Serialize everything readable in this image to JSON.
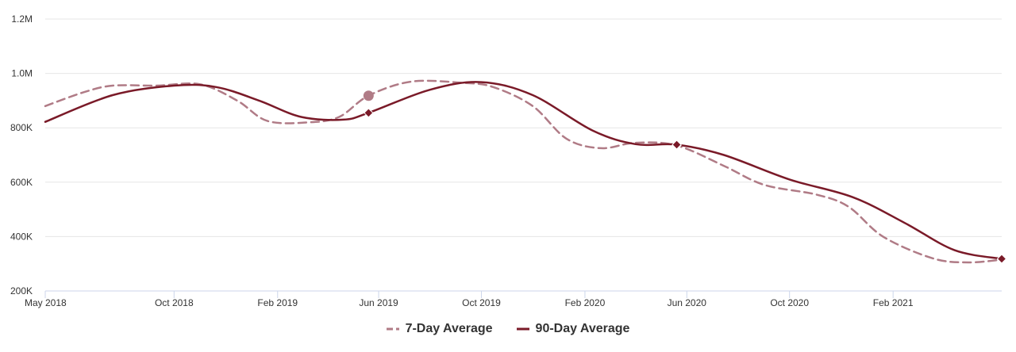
{
  "chart_data": {
    "type": "line",
    "title": "",
    "xlabel": "",
    "ylabel": "",
    "ylim": [
      200000,
      1200000
    ],
    "xlim": [
      "2018-05-01",
      "2021-06-10"
    ],
    "y_ticks": [
      {
        "value": 200000,
        "label": "200K"
      },
      {
        "value": 400000,
        "label": "400K"
      },
      {
        "value": 600000,
        "label": "600K"
      },
      {
        "value": 800000,
        "label": "800K"
      },
      {
        "value": 1000000,
        "label": "1.0M"
      },
      {
        "value": 1200000,
        "label": "1.2M"
      }
    ],
    "x_ticks": [
      {
        "date": "2018-05-01",
        "label": "May 2018"
      },
      {
        "date": "2018-10-01",
        "label": "Oct 2018"
      },
      {
        "date": "2019-02-01",
        "label": "Feb 2019"
      },
      {
        "date": "2019-06-01",
        "label": "Jun 2019"
      },
      {
        "date": "2019-10-01",
        "label": "Oct 2019"
      },
      {
        "date": "2020-02-01",
        "label": "Feb 2020"
      },
      {
        "date": "2020-06-01",
        "label": "Jun 2020"
      },
      {
        "date": "2020-10-01",
        "label": "Oct 2020"
      },
      {
        "date": "2021-02-01",
        "label": "Feb 2021"
      }
    ],
    "grid": true,
    "legend_position": "bottom-center",
    "series": [
      {
        "name": "7-Day Average",
        "color": "#b07b86",
        "style": "dashed",
        "points": [
          {
            "x": "2018-05-01",
            "y": 880000
          },
          {
            "x": "2018-06-15",
            "y": 930000
          },
          {
            "x": "2018-07-20",
            "y": 955000
          },
          {
            "x": "2018-09-10",
            "y": 955000
          },
          {
            "x": "2018-11-01",
            "y": 960000
          },
          {
            "x": "2018-12-15",
            "y": 900000
          },
          {
            "x": "2019-01-20",
            "y": 825000
          },
          {
            "x": "2019-03-10",
            "y": 820000
          },
          {
            "x": "2019-04-15",
            "y": 840000
          },
          {
            "x": "2019-05-20",
            "y": 918000
          },
          {
            "x": "2019-07-10",
            "y": 970000
          },
          {
            "x": "2019-09-10",
            "y": 965000
          },
          {
            "x": "2019-10-15",
            "y": 950000
          },
          {
            "x": "2019-12-01",
            "y": 880000
          },
          {
            "x": "2020-01-10",
            "y": 760000
          },
          {
            "x": "2020-02-20",
            "y": 725000
          },
          {
            "x": "2020-04-01",
            "y": 745000
          },
          {
            "x": "2020-05-20",
            "y": 735000
          },
          {
            "x": "2020-07-15",
            "y": 660000
          },
          {
            "x": "2020-09-01",
            "y": 590000
          },
          {
            "x": "2020-11-01",
            "y": 555000
          },
          {
            "x": "2020-12-10",
            "y": 510000
          },
          {
            "x": "2021-01-20",
            "y": 400000
          },
          {
            "x": "2021-03-20",
            "y": 320000
          },
          {
            "x": "2021-05-01",
            "y": 305000
          },
          {
            "x": "2021-06-10",
            "y": 315000
          }
        ]
      },
      {
        "name": "90-Day Average",
        "color": "#7a1a28",
        "style": "solid",
        "points": [
          {
            "x": "2018-05-01",
            "y": 822000
          },
          {
            "x": "2018-07-20",
            "y": 920000
          },
          {
            "x": "2018-10-01",
            "y": 955000
          },
          {
            "x": "2018-11-20",
            "y": 950000
          },
          {
            "x": "2019-01-10",
            "y": 900000
          },
          {
            "x": "2019-03-01",
            "y": 840000
          },
          {
            "x": "2019-04-20",
            "y": 830000
          },
          {
            "x": "2019-05-20",
            "y": 855000
          },
          {
            "x": "2019-08-01",
            "y": 940000
          },
          {
            "x": "2019-10-01",
            "y": 968000
          },
          {
            "x": "2019-12-01",
            "y": 920000
          },
          {
            "x": "2020-02-10",
            "y": 790000
          },
          {
            "x": "2020-04-01",
            "y": 740000
          },
          {
            "x": "2020-05-20",
            "y": 738000
          },
          {
            "x": "2020-07-15",
            "y": 700000
          },
          {
            "x": "2020-10-01",
            "y": 610000
          },
          {
            "x": "2020-12-15",
            "y": 545000
          },
          {
            "x": "2021-02-15",
            "y": 450000
          },
          {
            "x": "2021-04-15",
            "y": 350000
          },
          {
            "x": "2021-06-10",
            "y": 318000
          }
        ]
      }
    ],
    "markers": [
      {
        "series": "7-Day Average",
        "x": "2019-05-20",
        "y": 918000,
        "shape": "circle"
      },
      {
        "series": "90-Day Average",
        "x": "2019-05-20",
        "y": 855000,
        "shape": "diamond"
      },
      {
        "series": "7-Day Average",
        "x": "2020-05-20",
        "y": 735000,
        "shape": "diamond"
      },
      {
        "series": "90-Day Average",
        "x": "2020-05-20",
        "y": 738000,
        "shape": "diamond"
      },
      {
        "series": "90-Day Average",
        "x": "2021-06-10",
        "y": 318000,
        "shape": "diamond"
      }
    ]
  },
  "legend": {
    "items": [
      {
        "label": "7-Day Average",
        "color": "#b07b86"
      },
      {
        "label": "90-Day Average",
        "color": "#7a1a28"
      }
    ]
  },
  "colors": {
    "grid": "#e6e6e6",
    "axis": "#ccd6eb",
    "text": "#333333"
  }
}
